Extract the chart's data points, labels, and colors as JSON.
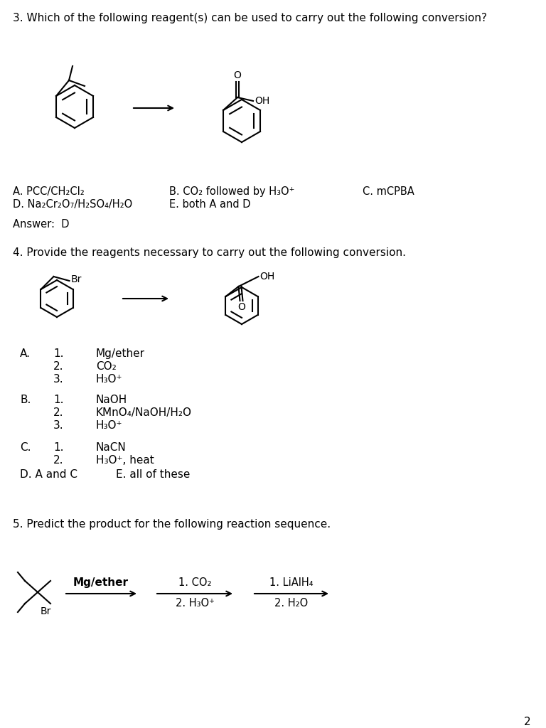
{
  "bg_color": "#ffffff",
  "q3_title": "3. Which of the following reagent(s) can be used to carry out the following\nconversion?",
  "q3_opt_A": "A. PCC/CH₂Cl₂",
  "q3_opt_D": "D. Na₂Cr₂O₇/H₂SO₄/H₂O",
  "q3_opt_B": "B. CO₂ followed by H₃O⁺",
  "q3_opt_E": "E. both A and D",
  "q3_opt_C": "C. mCPBA",
  "q3_answer": "Answer:  D",
  "q4_title": "4. Provide the reagents necessary to carry out the following conversion.",
  "q4_A_letter": "A.",
  "q4_A_nums": [
    "1.",
    "2.",
    "3."
  ],
  "q4_A_items": [
    "Mg/ether",
    "CO₂",
    "H₃O⁺"
  ],
  "q4_B_letter": "B.",
  "q4_B_nums": [
    "1.",
    "2.",
    "3."
  ],
  "q4_B_items": [
    "NaOH",
    "KMnO₄/NaOH/H₂O",
    "H₃O⁺"
  ],
  "q4_C_letter": "C.",
  "q4_C_nums": [
    "1.",
    "2."
  ],
  "q4_C_items": [
    "NaCN",
    "H₃O⁺, heat"
  ],
  "q4_D": "D. A and C",
  "q4_E": "E. all of these",
  "q5_title": "5. Predict the product for the following reaction sequence.",
  "q5_step1_label": "Mg/ether",
  "q5_step2_top": "1. CO₂",
  "q5_step2_bot": "2. H₃O⁺",
  "q5_step3_top": "1. LiAlH₄",
  "q5_step3_bot": "2. H₂O",
  "page_num": "2"
}
